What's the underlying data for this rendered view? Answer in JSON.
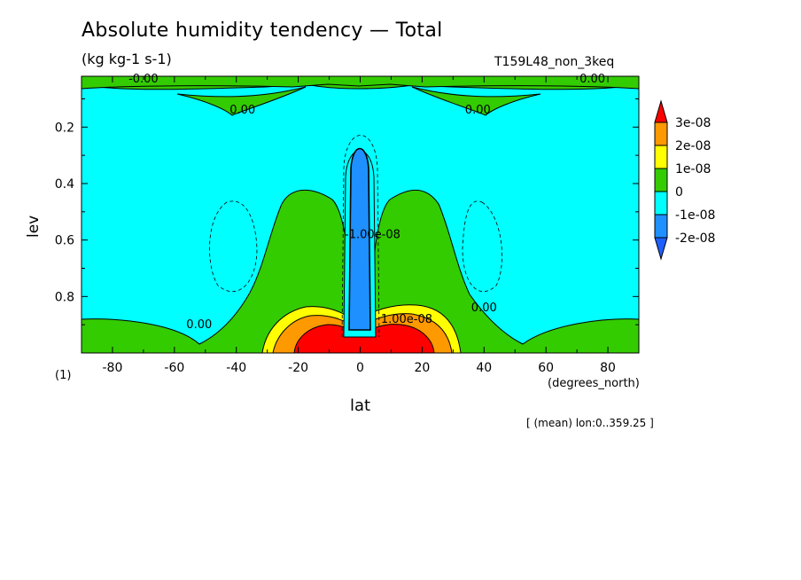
{
  "chart_data": {
    "type": "heatmap",
    "title": "Absolute humidity tendency — Total",
    "units": "(kg kg-1 s-1)",
    "run_id": "T159L48_non_3keq",
    "xlabel": "lat",
    "x_units": "(degrees_north)",
    "ylabel": "lev",
    "level_note": "(1)",
    "mean_note": "[ (mean) lon:0..359.25 ]",
    "xlim": [
      -90,
      90
    ],
    "ylim": [
      0.02,
      1.0
    ],
    "y_inverted": true,
    "x_ticks": [
      -80,
      -60,
      -40,
      -20,
      0,
      20,
      40,
      60,
      80
    ],
    "y_ticks": [
      0.2,
      0.4,
      0.6,
      0.8
    ],
    "colorbar": {
      "levels": [
        "3e-08",
        "2e-08",
        "1e-08",
        "0",
        "-1e-08",
        "-2e-08"
      ],
      "colors": [
        "#ff0000",
        "#ff9900",
        "#ffff00",
        "#33cc00",
        "#00ffff",
        "#1e90ff",
        "#1e60ff"
      ],
      "extend": "both"
    },
    "contour_labels": [
      {
        "text": "-0.00",
        "lat": -70,
        "lev": 0.03
      },
      {
        "text": "0.00",
        "lat": 75,
        "lev": 0.03
      },
      {
        "text": "0.00",
        "lat": -38,
        "lev": 0.14
      },
      {
        "text": "0.00",
        "lat": 38,
        "lev": 0.14
      },
      {
        "text": "0.00",
        "lat": -52,
        "lev": 0.9
      },
      {
        "text": "0.00",
        "lat": 40,
        "lev": 0.84
      },
      {
        "text": "-1.00e-08",
        "lat": 4,
        "lev": 0.58
      },
      {
        "text": "1.00e-08",
        "lat": 15,
        "lev": 0.88
      }
    ]
  }
}
